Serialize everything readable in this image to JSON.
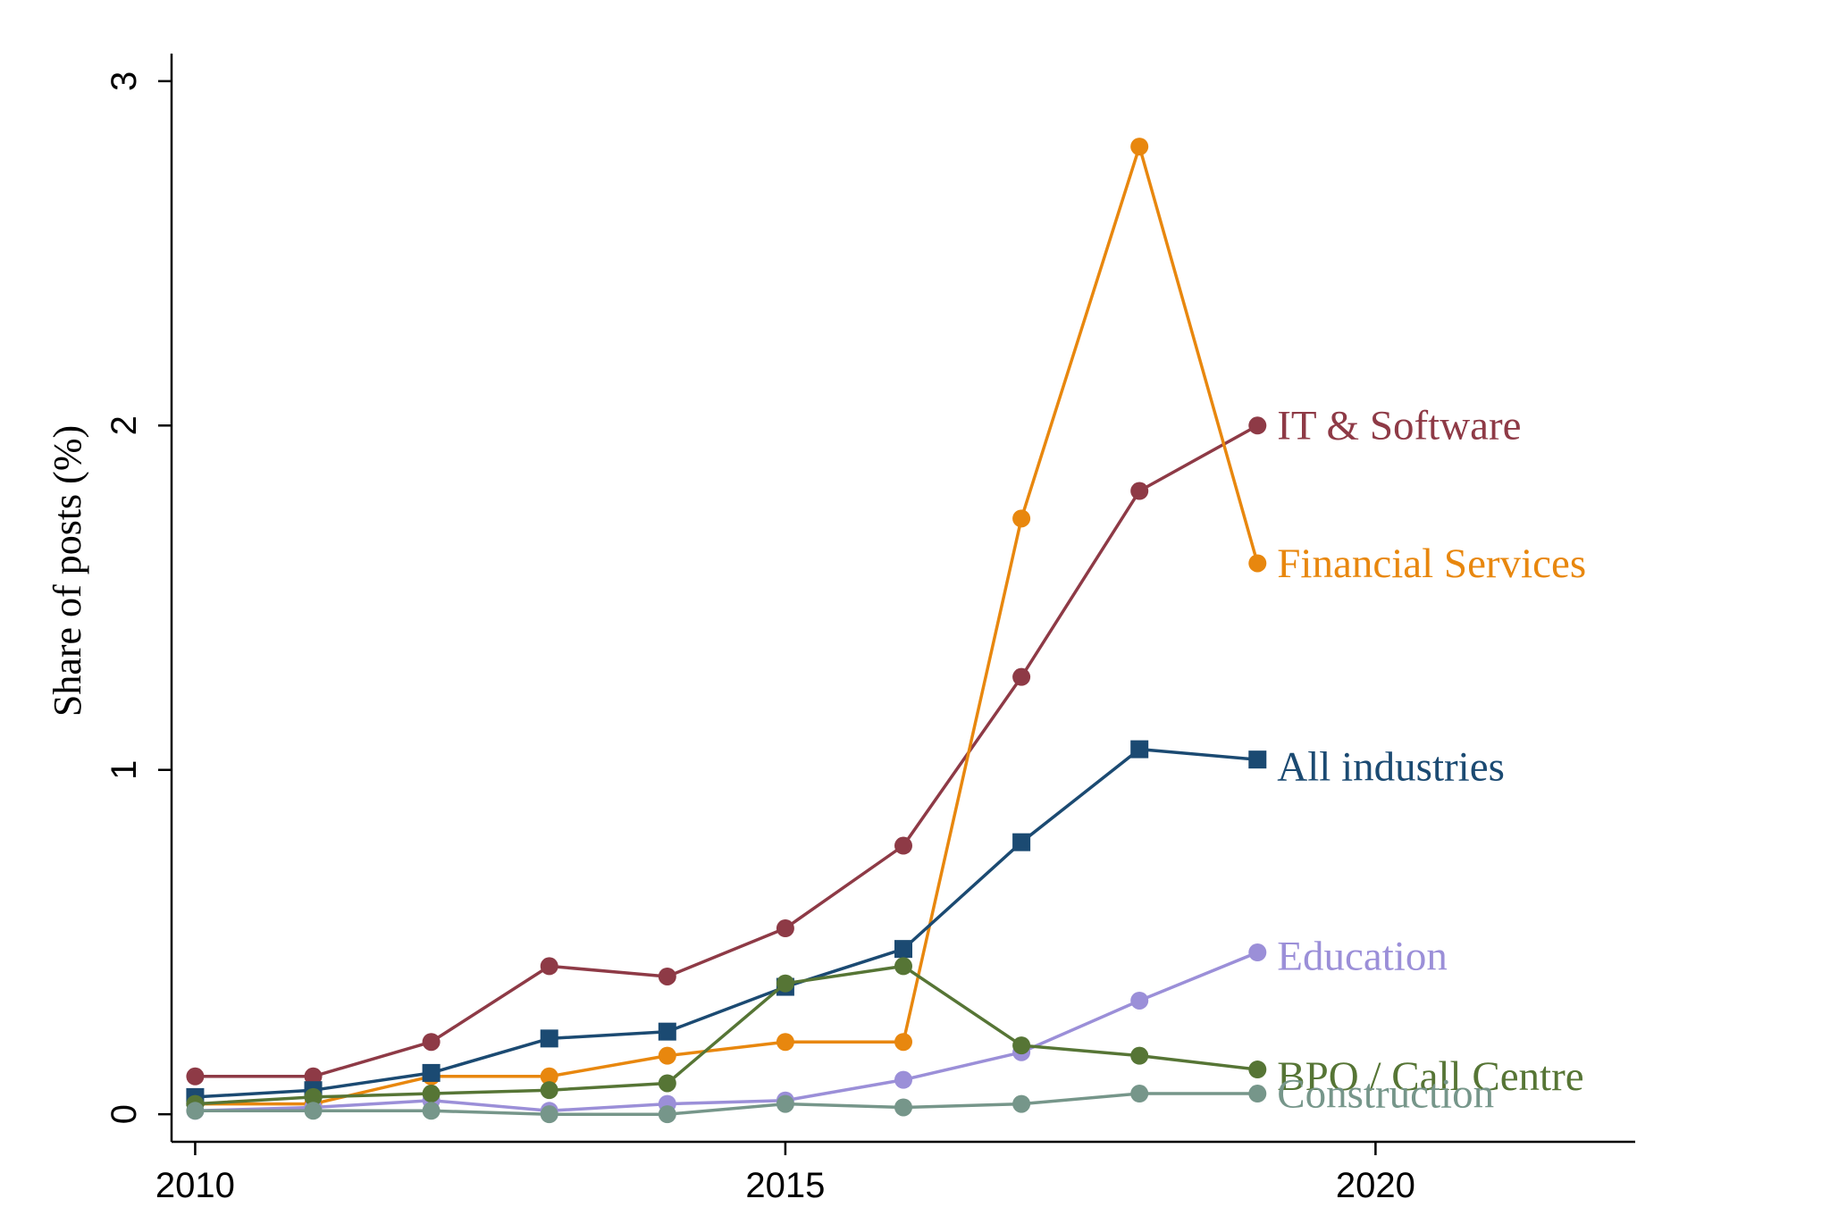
{
  "chart_data": {
    "type": "line",
    "title": "",
    "xlabel": "",
    "ylabel": "Share of posts (%)",
    "xlim": [
      2009.8,
      2022.2
    ],
    "ylim": [
      -0.08,
      3.08
    ],
    "xticks": [
      2010,
      2015,
      2020
    ],
    "yticks": [
      0,
      1,
      2,
      3
    ],
    "grid": false,
    "legend": "direct labels at series ends",
    "x": [
      2010,
      2011,
      2012,
      2013,
      2014,
      2015,
      2016,
      2017,
      2018,
      2019
    ],
    "series": [
      {
        "name": "IT & Software",
        "color": "#8e3a46",
        "marker": "circle",
        "values": [
          0.11,
          0.11,
          0.21,
          0.43,
          0.4,
          0.54,
          0.78,
          1.27,
          1.81,
          2.0
        ]
      },
      {
        "name": "Financial Services",
        "color": "#e8870e",
        "marker": "circle",
        "values": [
          0.03,
          0.03,
          0.11,
          0.11,
          0.17,
          0.21,
          0.21,
          1.73,
          2.81,
          1.6
        ]
      },
      {
        "name": "All industries",
        "color": "#1b4a72",
        "marker": "square",
        "values": [
          0.05,
          0.07,
          0.12,
          0.22,
          0.24,
          0.37,
          0.48,
          0.79,
          1.06,
          1.03
        ]
      },
      {
        "name": "Education",
        "color": "#9b8fd8",
        "marker": "circle",
        "values": [
          0.01,
          0.02,
          0.04,
          0.01,
          0.03,
          0.04,
          0.1,
          0.18,
          0.33,
          0.47
        ]
      },
      {
        "name": "BPO / Call Centre",
        "color": "#567535",
        "marker": "circle",
        "values": [
          0.03,
          0.05,
          0.06,
          0.07,
          0.09,
          0.38,
          0.43,
          0.2,
          0.17,
          0.13
        ]
      },
      {
        "name": "Construction",
        "color": "#76968a",
        "marker": "circle",
        "values": [
          0.01,
          0.01,
          0.01,
          0.0,
          0.0,
          0.03,
          0.02,
          0.03,
          0.06,
          0.06
        ]
      }
    ]
  }
}
